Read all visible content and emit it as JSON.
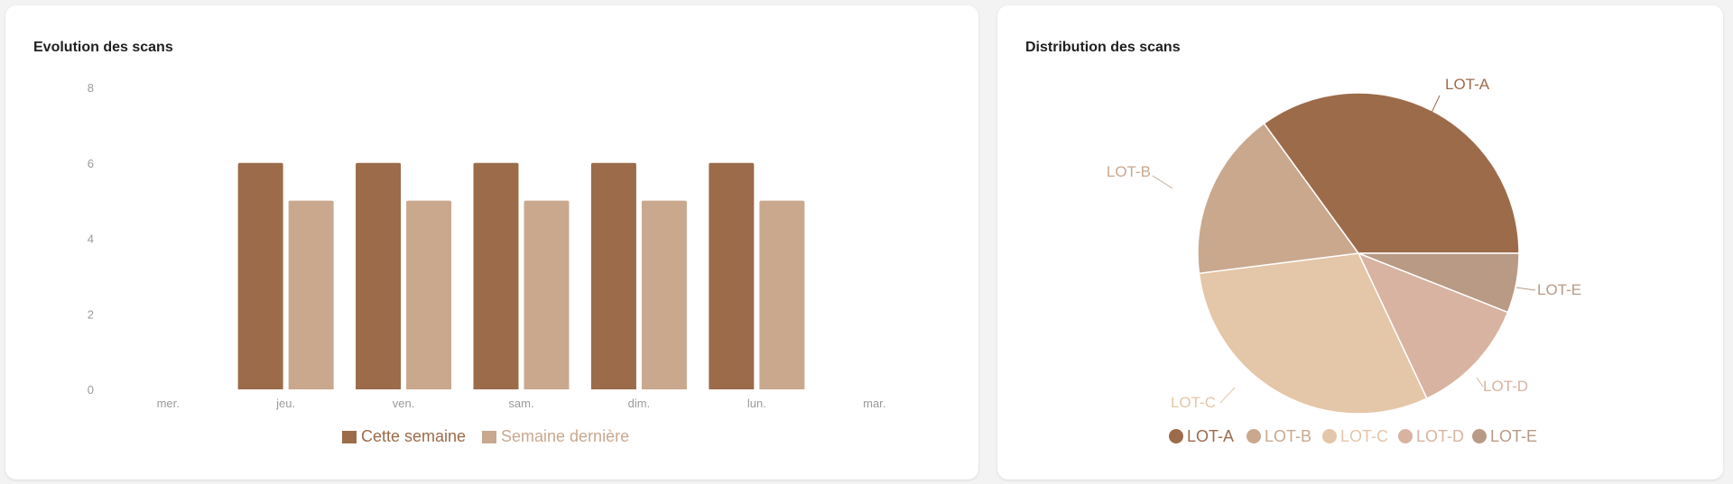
{
  "cards": {
    "bar_title": "Evolution des scans",
    "pie_title": "Distribution des scans"
  },
  "chart_data": [
    {
      "type": "bar",
      "title": "Evolution des scans",
      "categories": [
        "mer.",
        "jeu.",
        "ven.",
        "sam.",
        "dim.",
        "lun.",
        "mar."
      ],
      "y_ticks": [
        0,
        2,
        4,
        6,
        8
      ],
      "ylim": [
        0,
        8
      ],
      "grid": false,
      "legend_position": "bottom",
      "series": [
        {
          "name": "Cette semaine",
          "color": "#9c6b4a",
          "values": [
            0,
            6,
            6,
            6,
            6,
            6,
            0
          ]
        },
        {
          "name": "Semaine dernière",
          "color": "#c9a88e",
          "values": [
            0,
            5,
            5,
            5,
            5,
            5,
            0
          ]
        }
      ]
    },
    {
      "type": "pie",
      "title": "Distribution des scans",
      "legend_position": "bottom",
      "slices": [
        {
          "label": "LOT-A",
          "value": 35,
          "color": "#9c6b4a"
        },
        {
          "label": "LOT-B",
          "value": 17,
          "color": "#c9a88e"
        },
        {
          "label": "LOT-C",
          "value": 30,
          "color": "#e4c6a8"
        },
        {
          "label": "LOT-D",
          "value": 12,
          "color": "#d8b3a1"
        },
        {
          "label": "LOT-E",
          "value": 6,
          "color": "#b89a85"
        }
      ]
    }
  ]
}
